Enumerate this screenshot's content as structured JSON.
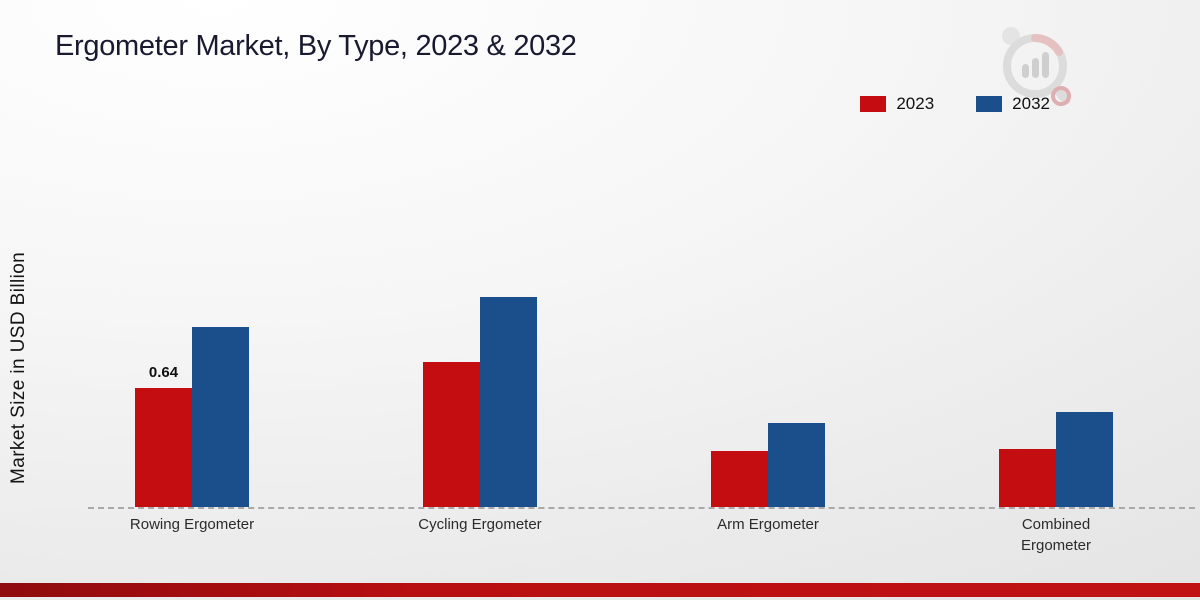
{
  "title": "Ergometer Market, By Type, 2023 & 2032",
  "ylabel": "Market Size in USD Billion",
  "legend": {
    "items": [
      {
        "label": "2023",
        "color": "#c40d10"
      },
      {
        "label": "2032",
        "color": "#1a4f8b"
      }
    ]
  },
  "chart_data": {
    "type": "bar",
    "title": "Ergometer Market, By Type, 2023 & 2032",
    "xlabel": "",
    "ylabel": "Market Size in USD Billion",
    "categories": [
      "Rowing Ergometer",
      "Cycling Ergometer",
      "Arm Ergometer",
      "Combined Ergometer"
    ],
    "series": [
      {
        "name": "2023",
        "color": "#c40d10",
        "values": [
          0.64,
          0.78,
          0.3,
          0.31
        ]
      },
      {
        "name": "2032",
        "color": "#1a4f8b",
        "values": [
          0.97,
          1.13,
          0.45,
          0.51
        ]
      }
    ],
    "ylim": [
      0,
      2
    ],
    "grid": false,
    "legend_position": "top-right",
    "annotations": [
      {
        "category_index": 0,
        "series_index": 0,
        "text": "0.64"
      }
    ]
  }
}
